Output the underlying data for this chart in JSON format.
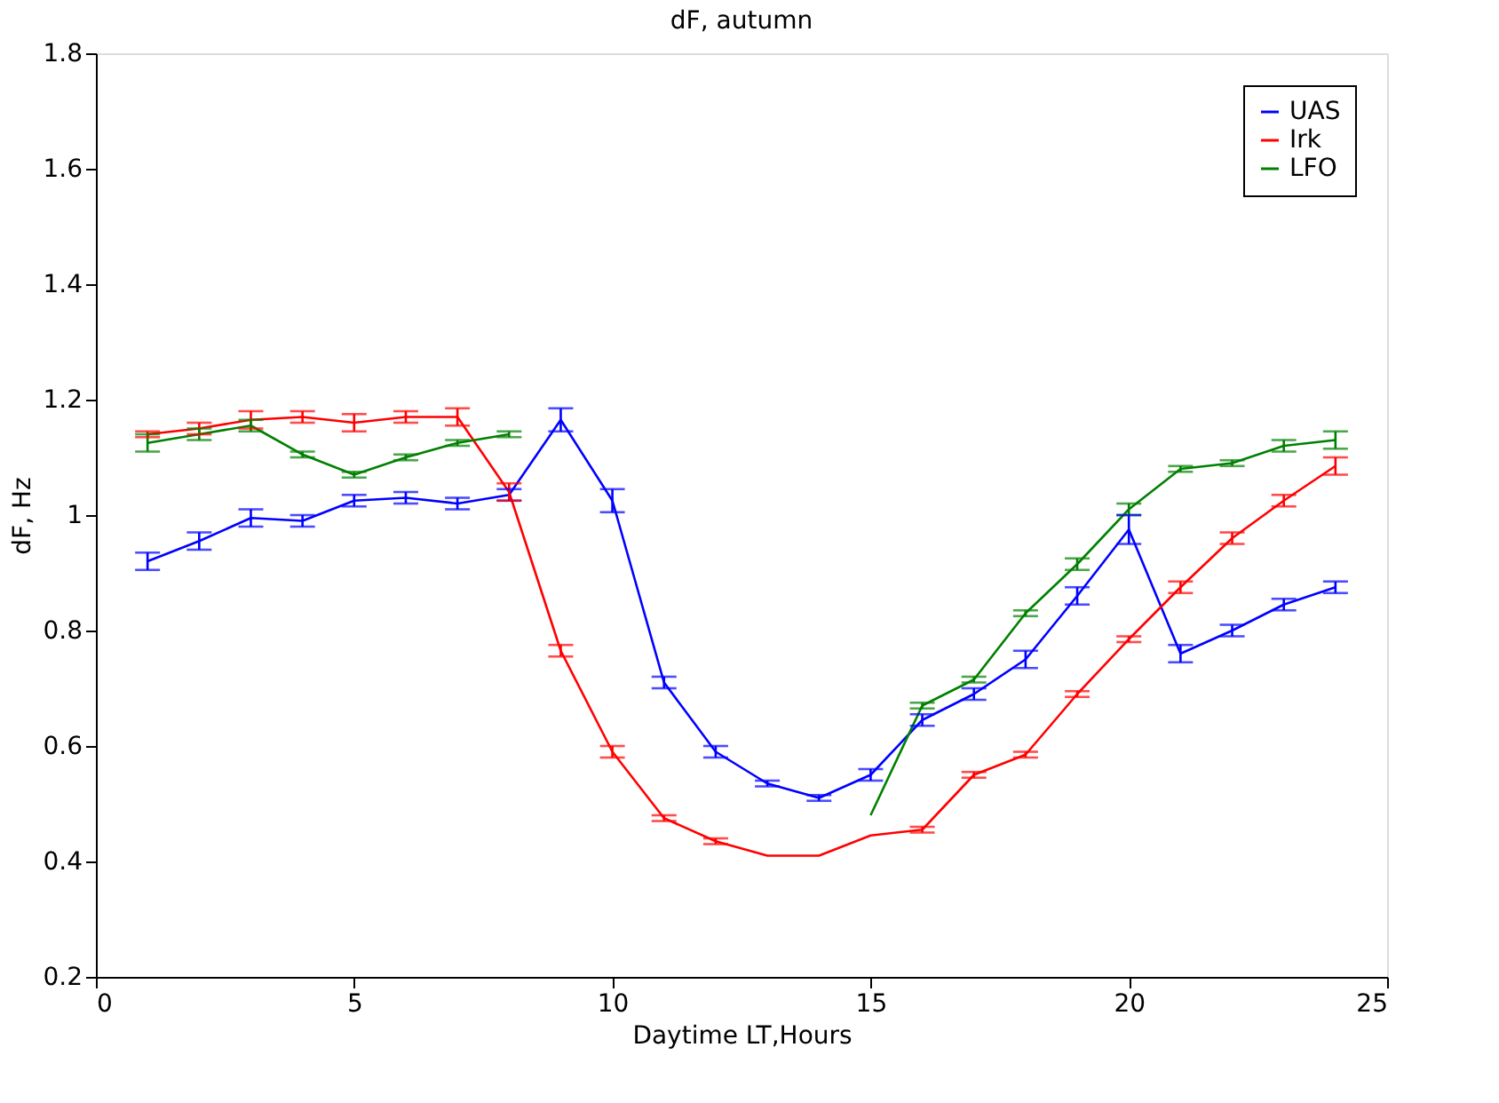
{
  "chart_data": {
    "type": "line",
    "title": "dF, autumn",
    "xlabel": "Daytime LT,Hours",
    "ylabel": "dF, Hz",
    "x": [
      1,
      2,
      3,
      4,
      5,
      6,
      7,
      8,
      9,
      10,
      11,
      12,
      13,
      14,
      15,
      16,
      17,
      18,
      19,
      20,
      21,
      22,
      23,
      24
    ],
    "series": [
      {
        "name": "UAS",
        "color": "#0000ff",
        "values": [
          0.92,
          0.955,
          0.995,
          0.99,
          1.025,
          1.03,
          1.02,
          1.035,
          1.165,
          1.025,
          0.71,
          0.59,
          0.535,
          0.51,
          0.55,
          0.645,
          0.69,
          0.75,
          0.86,
          0.975,
          0.76,
          0.8,
          0.845,
          0.875
        ],
        "errors": [
          0.015,
          0.015,
          0.015,
          0.01,
          0.01,
          0.01,
          0.01,
          0.01,
          0.02,
          0.02,
          0.01,
          0.01,
          0.005,
          0.005,
          0.01,
          0.01,
          0.01,
          0.015,
          0.015,
          0.025,
          0.015,
          0.01,
          0.01,
          0.01
        ]
      },
      {
        "name": "Irk",
        "color": "#ff0000",
        "values": [
          1.14,
          1.15,
          1.165,
          1.17,
          1.16,
          1.17,
          1.17,
          1.04,
          0.765,
          0.59,
          0.475,
          0.435,
          0.41,
          0.41,
          0.445,
          0.455,
          0.55,
          0.585,
          0.69,
          0.785,
          0.875,
          0.96,
          1.025,
          1.085
        ],
        "errors": [
          0.005,
          0.01,
          0.015,
          0.01,
          0.015,
          0.01,
          0.015,
          0.015,
          0.01,
          0.01,
          0.005,
          0.005,
          null,
          null,
          null,
          0.005,
          0.005,
          0.005,
          0.005,
          0.005,
          0.01,
          0.01,
          0.01,
          0.015
        ]
      },
      {
        "name": "LFO",
        "color": "#008000",
        "values": [
          1.125,
          1.14,
          1.155,
          1.105,
          1.07,
          1.1,
          1.125,
          1.14,
          null,
          null,
          null,
          null,
          null,
          null,
          0.48,
          0.67,
          0.715,
          0.83,
          0.915,
          1.01,
          1.08,
          1.09,
          1.12,
          1.13
        ],
        "errors": [
          0.015,
          0.01,
          0.01,
          0.005,
          0.005,
          0.005,
          0.005,
          0.005,
          null,
          null,
          null,
          null,
          null,
          null,
          null,
          0.005,
          0.005,
          0.005,
          0.01,
          0.01,
          0.005,
          0.005,
          0.01,
          0.015
        ]
      }
    ],
    "xlim": [
      0,
      25
    ],
    "xticks": [
      0,
      5,
      10,
      15,
      20,
      25
    ],
    "ylim": [
      0.2,
      1.8
    ],
    "yticks": [
      0.2,
      0.4,
      0.6,
      0.8,
      1,
      1.2,
      1.4,
      1.6,
      1.8
    ],
    "grid": false,
    "legend": "top right",
    "marker": "none",
    "line_style": "solid"
  }
}
